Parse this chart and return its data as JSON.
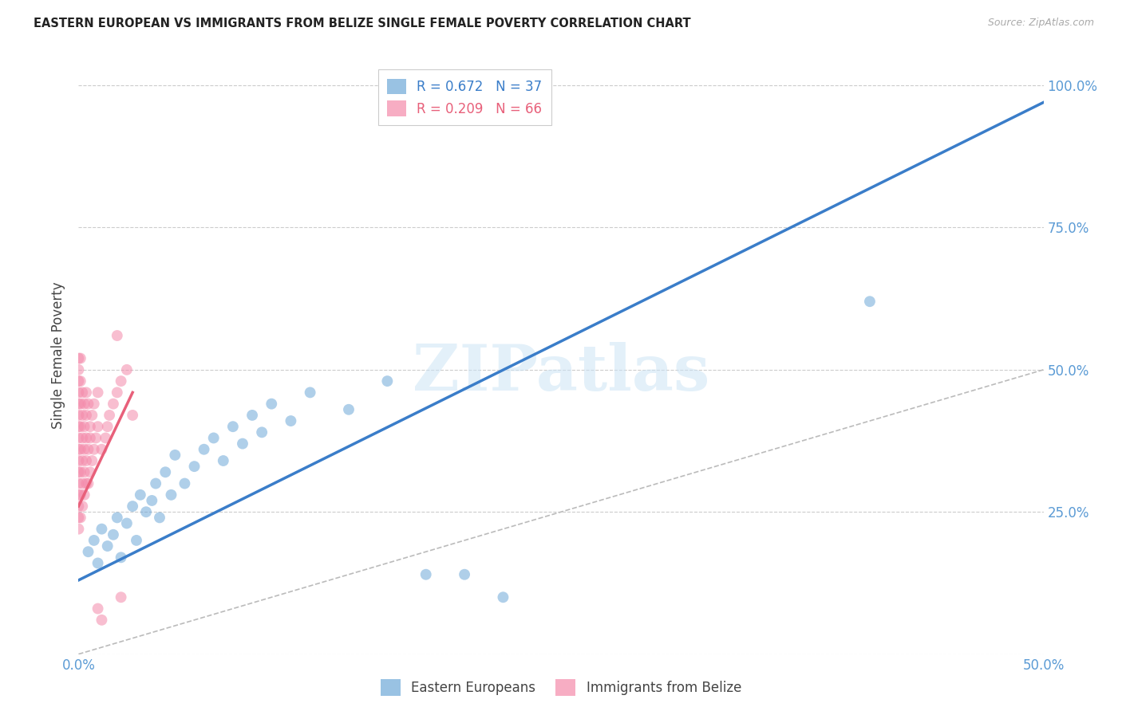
{
  "title": "EASTERN EUROPEAN VS IMMIGRANTS FROM BELIZE SINGLE FEMALE POVERTY CORRELATION CHART",
  "source": "Source: ZipAtlas.com",
  "ylabel": "Single Female Poverty",
  "xlim": [
    0.0,
    0.5
  ],
  "ylim": [
    0.0,
    1.05
  ],
  "xtick_positions": [
    0.0,
    0.1,
    0.2,
    0.3,
    0.4,
    0.5
  ],
  "xticklabels": [
    "0.0%",
    "",
    "",
    "",
    "",
    "50.0%"
  ],
  "ytick_positions": [
    0.0,
    0.25,
    0.5,
    0.75,
    1.0
  ],
  "yticklabels_right": [
    "",
    "25.0%",
    "50.0%",
    "75.0%",
    "100.0%"
  ],
  "legend1_label": "R = 0.672   N = 37",
  "legend2_label": "R = 0.209   N = 66",
  "watermark": "ZIPatlas",
  "blue_color": "#6ea8d8",
  "pink_color": "#f48aaa",
  "blue_line_color": "#3a7dc9",
  "pink_line_color": "#e8607a",
  "grid_color": "#cccccc",
  "axis_color": "#5b9bd5",
  "blue_scatter": [
    [
      0.005,
      0.18
    ],
    [
      0.008,
      0.2
    ],
    [
      0.01,
      0.16
    ],
    [
      0.012,
      0.22
    ],
    [
      0.015,
      0.19
    ],
    [
      0.018,
      0.21
    ],
    [
      0.02,
      0.24
    ],
    [
      0.022,
      0.17
    ],
    [
      0.025,
      0.23
    ],
    [
      0.028,
      0.26
    ],
    [
      0.03,
      0.2
    ],
    [
      0.032,
      0.28
    ],
    [
      0.035,
      0.25
    ],
    [
      0.038,
      0.27
    ],
    [
      0.04,
      0.3
    ],
    [
      0.042,
      0.24
    ],
    [
      0.045,
      0.32
    ],
    [
      0.048,
      0.28
    ],
    [
      0.05,
      0.35
    ],
    [
      0.055,
      0.3
    ],
    [
      0.06,
      0.33
    ],
    [
      0.065,
      0.36
    ],
    [
      0.07,
      0.38
    ],
    [
      0.075,
      0.34
    ],
    [
      0.08,
      0.4
    ],
    [
      0.085,
      0.37
    ],
    [
      0.09,
      0.42
    ],
    [
      0.095,
      0.39
    ],
    [
      0.1,
      0.44
    ],
    [
      0.11,
      0.41
    ],
    [
      0.12,
      0.46
    ],
    [
      0.14,
      0.43
    ],
    [
      0.16,
      0.48
    ],
    [
      0.18,
      0.14
    ],
    [
      0.2,
      0.14
    ],
    [
      0.22,
      0.1
    ],
    [
      0.41,
      0.62
    ]
  ],
  "pink_scatter": [
    [
      0.0,
      0.22
    ],
    [
      0.0,
      0.24
    ],
    [
      0.0,
      0.26
    ],
    [
      0.0,
      0.28
    ],
    [
      0.0,
      0.3
    ],
    [
      0.0,
      0.32
    ],
    [
      0.0,
      0.34
    ],
    [
      0.0,
      0.36
    ],
    [
      0.0,
      0.38
    ],
    [
      0.0,
      0.4
    ],
    [
      0.0,
      0.42
    ],
    [
      0.0,
      0.44
    ],
    [
      0.001,
      0.24
    ],
    [
      0.001,
      0.28
    ],
    [
      0.001,
      0.32
    ],
    [
      0.001,
      0.36
    ],
    [
      0.001,
      0.4
    ],
    [
      0.002,
      0.26
    ],
    [
      0.002,
      0.3
    ],
    [
      0.002,
      0.34
    ],
    [
      0.002,
      0.38
    ],
    [
      0.003,
      0.28
    ],
    [
      0.003,
      0.32
    ],
    [
      0.003,
      0.36
    ],
    [
      0.004,
      0.3
    ],
    [
      0.004,
      0.34
    ],
    [
      0.004,
      0.38
    ],
    [
      0.005,
      0.3
    ],
    [
      0.005,
      0.36
    ],
    [
      0.006,
      0.32
    ],
    [
      0.006,
      0.38
    ],
    [
      0.007,
      0.34
    ],
    [
      0.008,
      0.36
    ],
    [
      0.009,
      0.38
    ],
    [
      0.01,
      0.4
    ],
    [
      0.012,
      0.36
    ],
    [
      0.014,
      0.38
    ],
    [
      0.015,
      0.4
    ],
    [
      0.016,
      0.42
    ],
    [
      0.018,
      0.44
    ],
    [
      0.02,
      0.46
    ],
    [
      0.022,
      0.48
    ],
    [
      0.025,
      0.5
    ],
    [
      0.028,
      0.42
    ],
    [
      0.0,
      0.46
    ],
    [
      0.0,
      0.48
    ],
    [
      0.0,
      0.5
    ],
    [
      0.001,
      0.44
    ],
    [
      0.001,
      0.48
    ],
    [
      0.002,
      0.42
    ],
    [
      0.002,
      0.46
    ],
    [
      0.003,
      0.4
    ],
    [
      0.003,
      0.44
    ],
    [
      0.004,
      0.42
    ],
    [
      0.004,
      0.46
    ],
    [
      0.005,
      0.44
    ],
    [
      0.006,
      0.4
    ],
    [
      0.007,
      0.42
    ],
    [
      0.008,
      0.44
    ],
    [
      0.01,
      0.46
    ],
    [
      0.0,
      0.52
    ],
    [
      0.001,
      0.52
    ],
    [
      0.02,
      0.56
    ],
    [
      0.022,
      0.1
    ],
    [
      0.01,
      0.08
    ],
    [
      0.012,
      0.06
    ]
  ],
  "blue_fit_x": [
    0.0,
    0.5
  ],
  "blue_fit_y": [
    0.13,
    0.97
  ],
  "pink_fit_x": [
    0.0,
    0.028
  ],
  "pink_fit_y": [
    0.26,
    0.46
  ],
  "legend_labels": [
    "Eastern Europeans",
    "Immigrants from Belize"
  ]
}
